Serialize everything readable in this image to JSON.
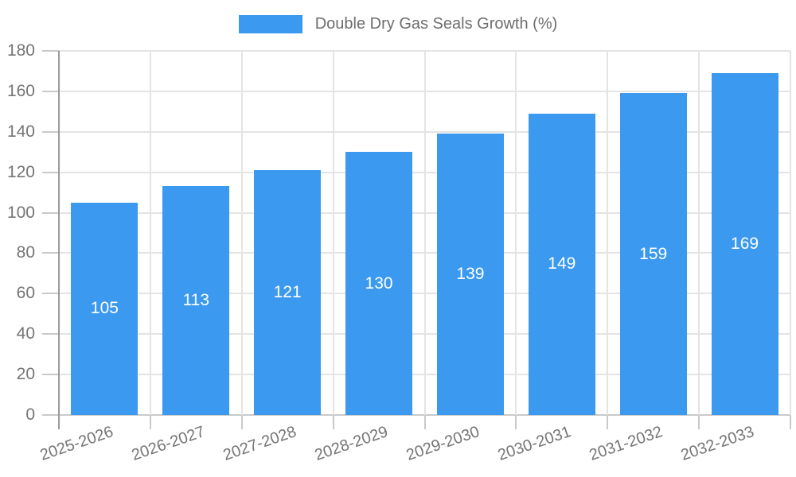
{
  "legend": {
    "label": "Double Dry Gas Seals Growth (%)"
  },
  "chart_data": {
    "type": "bar",
    "title": "Double Dry Gas Seals Growth (%)",
    "categories": [
      "2025-2026",
      "2026-2027",
      "2027-2028",
      "2028-2029",
      "2029-2030",
      "2030-2031",
      "2031-2032",
      "2032-2033"
    ],
    "values": [
      105,
      113,
      121,
      130,
      139,
      149,
      159,
      169
    ],
    "xlabel": "",
    "ylabel": "",
    "ylim": [
      0,
      180
    ],
    "ytick_step": 20,
    "yticks": [
      0,
      20,
      40,
      60,
      80,
      100,
      120,
      140,
      160,
      180
    ],
    "grid": true,
    "legend_position": "top-center",
    "bar_labels_inside": true,
    "colors": {
      "bar": "#3b99ef",
      "bar_label": "#ffffff",
      "axis_text": "#757575",
      "legend_text": "#6e6e6e",
      "grid": "#e4e4e4",
      "tick": "#c9c9c9",
      "axis_line": "#9a9a9a",
      "background": "#ffffff"
    }
  }
}
